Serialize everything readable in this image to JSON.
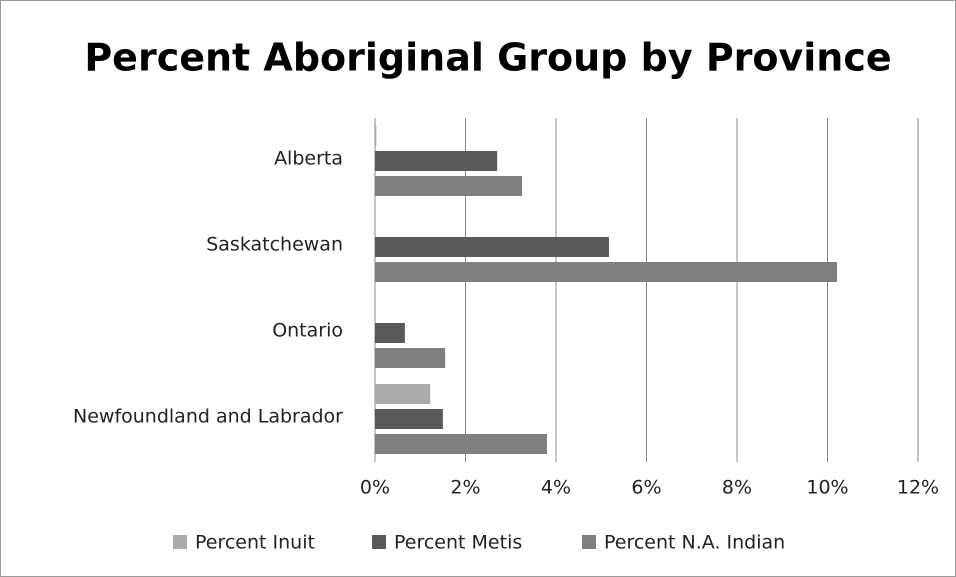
{
  "chart_data": {
    "type": "bar",
    "orientation": "horizontal",
    "title": "Percent Aboriginal Group by Province",
    "categories": [
      "Newfoundland and Labrador",
      "Ontario",
      "Saskatchewan",
      "Alberta"
    ],
    "series": [
      {
        "name": "Percent Inuit",
        "color": "#aaaaaa",
        "values": [
          1.22,
          0,
          0,
          0.03
        ]
      },
      {
        "name": "Percent Metis",
        "color": "#595959",
        "values": [
          1.5,
          0.66,
          5.17,
          2.7
        ]
      },
      {
        "name": "Percent N.A. Indian",
        "color": "#7f7f7f",
        "values": [
          3.8,
          1.55,
          10.21,
          3.25
        ]
      }
    ],
    "xlim": [
      0,
      12
    ],
    "xticks": [
      {
        "value": 0,
        "label": "0%"
      },
      {
        "value": 2,
        "label": "2%"
      },
      {
        "value": 4,
        "label": "4%"
      },
      {
        "value": 6,
        "label": "6%"
      },
      {
        "value": 8,
        "label": "8%"
      },
      {
        "value": 10,
        "label": "10%"
      },
      {
        "value": 12,
        "label": "12%"
      }
    ],
    "grid": true,
    "legend": "bottom"
  }
}
